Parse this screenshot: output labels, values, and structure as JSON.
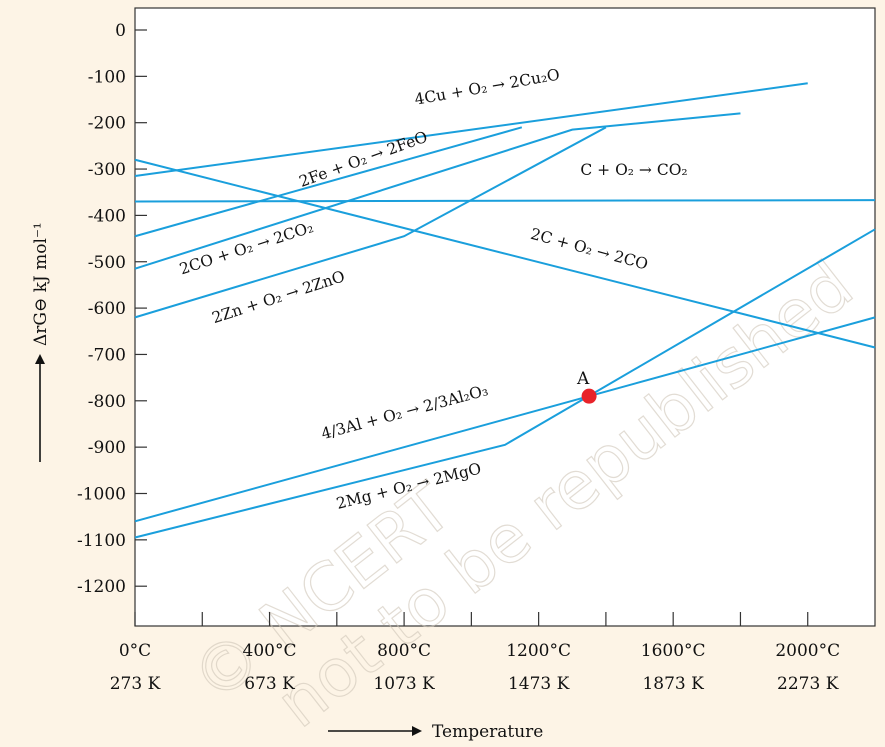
{
  "chart_data": {
    "type": "line",
    "title": "",
    "xlabel": "Temperature",
    "ylabel": "ΔrG⊖ kJ mol⁻¹",
    "xlim": [
      0,
      2200
    ],
    "ylim": [
      -1300,
      0
    ],
    "grid": false,
    "x_ticks": [
      {
        "x": 0,
        "celsius": "0°C",
        "kelvin": "273 K"
      },
      {
        "x": 400,
        "celsius": "400°C",
        "kelvin": "673 K"
      },
      {
        "x": 800,
        "celsius": "800°C",
        "kelvin": "1073 K"
      },
      {
        "x": 1200,
        "celsius": "1200°C",
        "kelvin": "1473 K"
      },
      {
        "x": 1600,
        "celsius": "1600°C",
        "kelvin": "1873 K"
      },
      {
        "x": 2000,
        "celsius": "2000°C",
        "kelvin": "2273 K"
      }
    ],
    "x_minor_ticks": [
      200,
      600,
      1000,
      1400,
      1800
    ],
    "y_ticks": [
      0,
      -100,
      -200,
      -300,
      -400,
      -500,
      -600,
      -700,
      -800,
      -900,
      -1000,
      -1100,
      -1200
    ],
    "series": [
      {
        "name": "4Cu + O₂ → 2Cu₂O",
        "x": [
          0,
          2000
        ],
        "y": [
          -315,
          -115
        ]
      },
      {
        "name": "2Fe + O₂ → 2FeO",
        "x": [
          0,
          1150
        ],
        "y": [
          -445,
          -210
        ]
      },
      {
        "name": "C + O₂ → CO₂",
        "x": [
          0,
          2200
        ],
        "y": [
          -370,
          -367
        ]
      },
      {
        "name": "2C + O₂ → 2CO",
        "x": [
          0,
          2200
        ],
        "y": [
          -280,
          -685
        ]
      },
      {
        "name": "2CO + O₂ → 2CO₂",
        "x": [
          0,
          1300,
          1800
        ],
        "y": [
          -515,
          -215,
          -180
        ]
      },
      {
        "name": "2Zn + O₂ → 2ZnO",
        "x": [
          0,
          800,
          1400
        ],
        "y": [
          -620,
          -445,
          -210
        ]
      },
      {
        "name": "4/3Al + O₂ → 2/3Al₂O₃",
        "x": [
          0,
          1350,
          2200
        ],
        "y": [
          -1060,
          -790,
          -620
        ]
      },
      {
        "name": "2Mg + O₂ → 2MgO",
        "x": [
          0,
          1100,
          2200
        ],
        "y": [
          -1095,
          -895,
          -430
        ]
      }
    ],
    "annotations": [
      {
        "text": "A",
        "x": 1350,
        "y": -790
      }
    ],
    "colors": {
      "line": "#1a9fdc",
      "point": "#e8232a",
      "background": "#fdf4e6"
    },
    "watermark": {
      "line1": "© NCERT",
      "line2": "not to be republished"
    }
  }
}
